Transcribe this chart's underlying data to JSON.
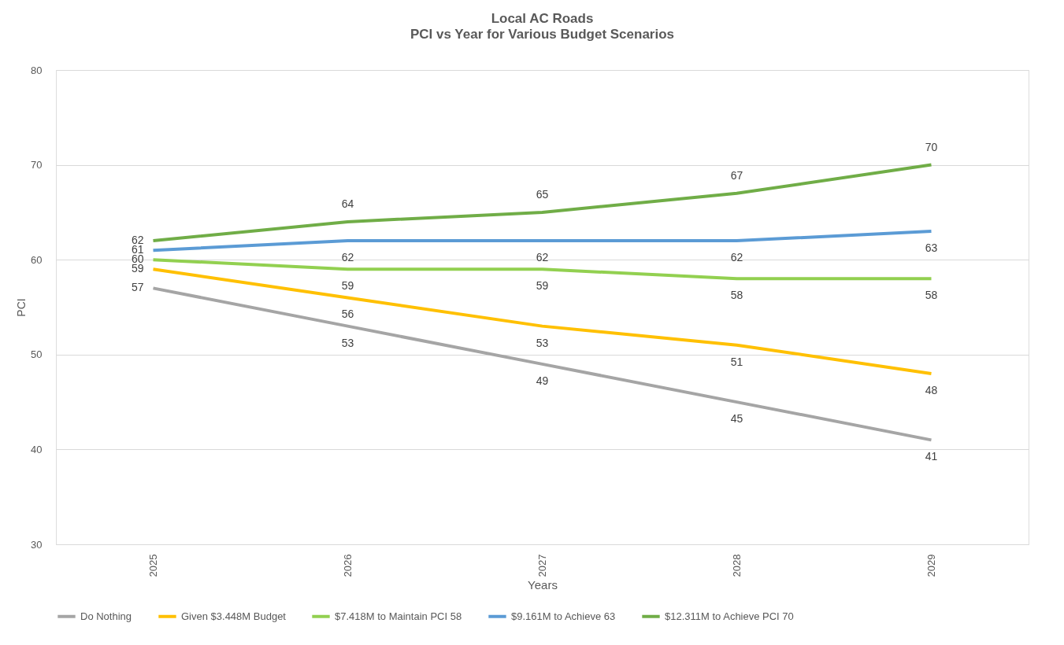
{
  "chart_data": {
    "type": "line",
    "title": "Local AC Roads",
    "subtitle": "PCI vs Year for Various Budget Scenarios",
    "xlabel": "Years",
    "ylabel": "PCI",
    "categories": [
      "2025",
      "2026",
      "2027",
      "2028",
      "2029"
    ],
    "series": [
      {
        "name": "Do Nothing",
        "color": "#a5a5a5",
        "values": [
          57,
          53,
          49,
          45,
          41
        ]
      },
      {
        "name": "Given $3.448M Budget",
        "color": "#ffc000",
        "values": [
          59,
          56,
          53,
          51,
          48
        ]
      },
      {
        "name": "$7.418M to Maintain PCI 58",
        "color": "#92d050",
        "values": [
          60,
          59,
          59,
          58,
          58
        ]
      },
      {
        "name": "$9.161M to Achieve 63",
        "color": "#5b9bd5",
        "values": [
          61,
          62,
          62,
          62,
          63
        ]
      },
      {
        "name": "$12.311M to Achieve PCI 70",
        "color": "#70ad47",
        "values": [
          62,
          64,
          65,
          67,
          70
        ]
      }
    ],
    "ylim": [
      30,
      80
    ],
    "yticks": [
      30,
      40,
      50,
      60,
      70,
      80
    ],
    "grid": "y",
    "legend": "bottom",
    "data_labels": true,
    "marker": "none",
    "line_style": "solid"
  }
}
